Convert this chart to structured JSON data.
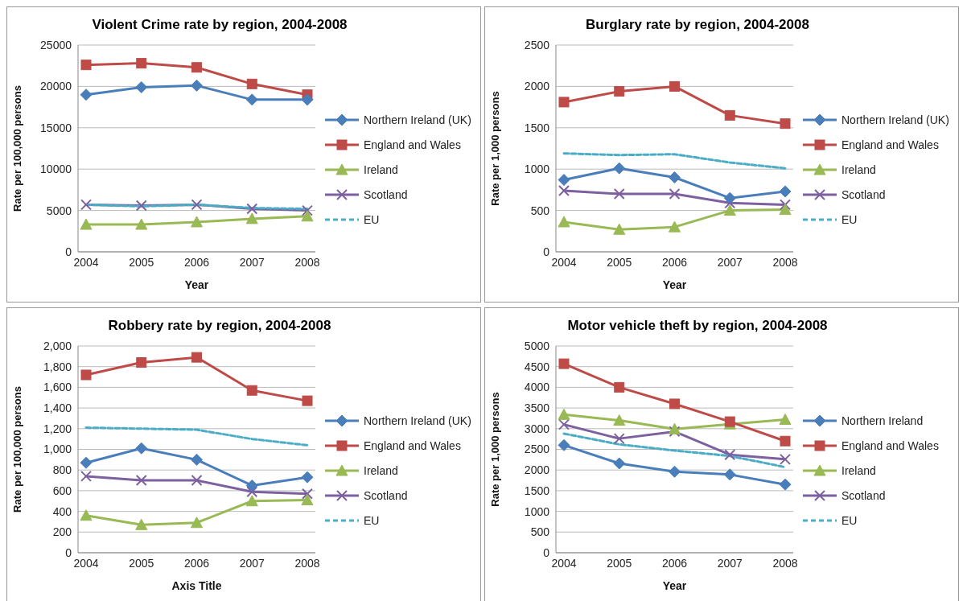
{
  "chart_data": [
    {
      "type": "line",
      "title": "Violent Crime rate by region, 2004-2008",
      "xlabel": "Year",
      "ylabel": "Rate per 100,000 persons",
      "categories": [
        "2004",
        "2005",
        "2006",
        "2007",
        "2008"
      ],
      "ylim": [
        0,
        25000
      ],
      "yticks": [
        0,
        5000,
        10000,
        15000,
        20000,
        25000
      ],
      "grid": "y",
      "legend": "right",
      "series": [
        {
          "name": "Northern Ireland (UK)",
          "color": "#4a7ebb",
          "marker": "diamond",
          "values": [
            19000,
            19900,
            20100,
            18400,
            18400
          ]
        },
        {
          "name": "England and Wales",
          "color": "#be4b48",
          "marker": "square",
          "values": [
            22600,
            22800,
            22300,
            20300,
            19000
          ]
        },
        {
          "name": "Ireland",
          "color": "#98b954",
          "marker": "triangle",
          "values": [
            3300,
            3300,
            3600,
            4000,
            4300
          ]
        },
        {
          "name": "Scotland",
          "color": "#7d60a0",
          "marker": "cross",
          "values": [
            5700,
            5600,
            5700,
            5200,
            5000
          ]
        },
        {
          "name": "EU",
          "color": "#4bacc6",
          "marker": "none",
          "line_style": "dashed",
          "values": [
            5700,
            5500,
            5700,
            5300,
            5200
          ]
        }
      ]
    },
    {
      "type": "line",
      "title": "Burglary rate by region, 2004-2008",
      "xlabel": "Year",
      "ylabel": "Rate per 1,000 persons",
      "categories": [
        "2004",
        "2005",
        "2006",
        "2007",
        "2008"
      ],
      "ylim": [
        0,
        2500
      ],
      "yticks": [
        0,
        500,
        1000,
        1500,
        2000,
        2500
      ],
      "grid": "y",
      "legend": "right",
      "series": [
        {
          "name": "Northern Ireland (UK)",
          "color": "#4a7ebb",
          "marker": "diamond",
          "values": [
            870,
            1010,
            900,
            650,
            730
          ]
        },
        {
          "name": "England and Wales",
          "color": "#be4b48",
          "marker": "square",
          "values": [
            1810,
            1940,
            2000,
            1650,
            1550
          ]
        },
        {
          "name": "Ireland",
          "color": "#98b954",
          "marker": "triangle",
          "values": [
            360,
            270,
            300,
            500,
            510
          ]
        },
        {
          "name": "Scotland",
          "color": "#7d60a0",
          "marker": "cross",
          "values": [
            740,
            700,
            700,
            590,
            570
          ]
        },
        {
          "name": "EU",
          "color": "#4bacc6",
          "marker": "none",
          "line_style": "dashed",
          "values": [
            1190,
            1170,
            1180,
            1080,
            1010
          ]
        }
      ]
    },
    {
      "type": "line",
      "title": "Robbery rate by region, 2004-2008",
      "xlabel": "Axis Title",
      "ylabel": "Rate per 100,000 persons",
      "categories": [
        "2004",
        "2005",
        "2006",
        "2007",
        "2008"
      ],
      "ylim": [
        0,
        2000
      ],
      "yticks": [
        0,
        200,
        400,
        600,
        800,
        {
          "value": 1000,
          "label": "1,000"
        },
        {
          "value": 1200,
          "label": "1,200"
        },
        {
          "value": 1400,
          "label": "1,400"
        },
        {
          "value": 1600,
          "label": "1,600"
        },
        {
          "value": 1800,
          "label": "1,800"
        },
        {
          "value": 2000,
          "label": "2,000"
        }
      ],
      "grid": "y",
      "legend": "right",
      "series": [
        {
          "name": "Northern Ireland (UK)",
          "color": "#4a7ebb",
          "marker": "diamond",
          "values": [
            870,
            1010,
            900,
            650,
            730
          ]
        },
        {
          "name": "England and Wales",
          "color": "#be4b48",
          "marker": "square",
          "values": [
            1720,
            1840,
            1890,
            1570,
            1470
          ]
        },
        {
          "name": "Ireland",
          "color": "#98b954",
          "marker": "triangle",
          "values": [
            360,
            270,
            290,
            500,
            510
          ]
        },
        {
          "name": "Scotland",
          "color": "#7d60a0",
          "marker": "cross",
          "values": [
            740,
            700,
            700,
            590,
            570
          ]
        },
        {
          "name": "EU",
          "color": "#4bacc6",
          "marker": "none",
          "line_style": "dashed",
          "values": [
            1210,
            1200,
            1190,
            1100,
            1040
          ]
        }
      ]
    },
    {
      "type": "line",
      "title": "Motor vehicle theft by region, 2004-2008",
      "xlabel": "Year",
      "ylabel": "Rate per 1,000 persons",
      "categories": [
        "2004",
        "2005",
        "2006",
        "2007",
        "2008"
      ],
      "ylim": [
        0,
        5000
      ],
      "yticks": [
        0,
        500,
        1000,
        1500,
        2000,
        2500,
        3000,
        3500,
        4000,
        4500,
        5000
      ],
      "grid": "y",
      "legend": "right",
      "series": [
        {
          "name": "Northern Ireland",
          "color": "#4a7ebb",
          "marker": "diamond",
          "values": [
            2600,
            2160,
            1960,
            1890,
            1650
          ]
        },
        {
          "name": "England and Wales",
          "color": "#be4b48",
          "marker": "square",
          "values": [
            4570,
            4000,
            3600,
            3170,
            2700
          ]
        },
        {
          "name": "Ireland",
          "color": "#98b954",
          "marker": "triangle",
          "values": [
            3340,
            3200,
            2990,
            3110,
            3220
          ]
        },
        {
          "name": "Scotland",
          "color": "#7d60a0",
          "marker": "cross",
          "values": [
            3100,
            2760,
            2930,
            2370,
            2260
          ]
        },
        {
          "name": "EU",
          "color": "#4bacc6",
          "marker": "none",
          "line_style": "dashed",
          "values": [
            2880,
            2620,
            2470,
            2340,
            2070
          ]
        }
      ]
    }
  ]
}
